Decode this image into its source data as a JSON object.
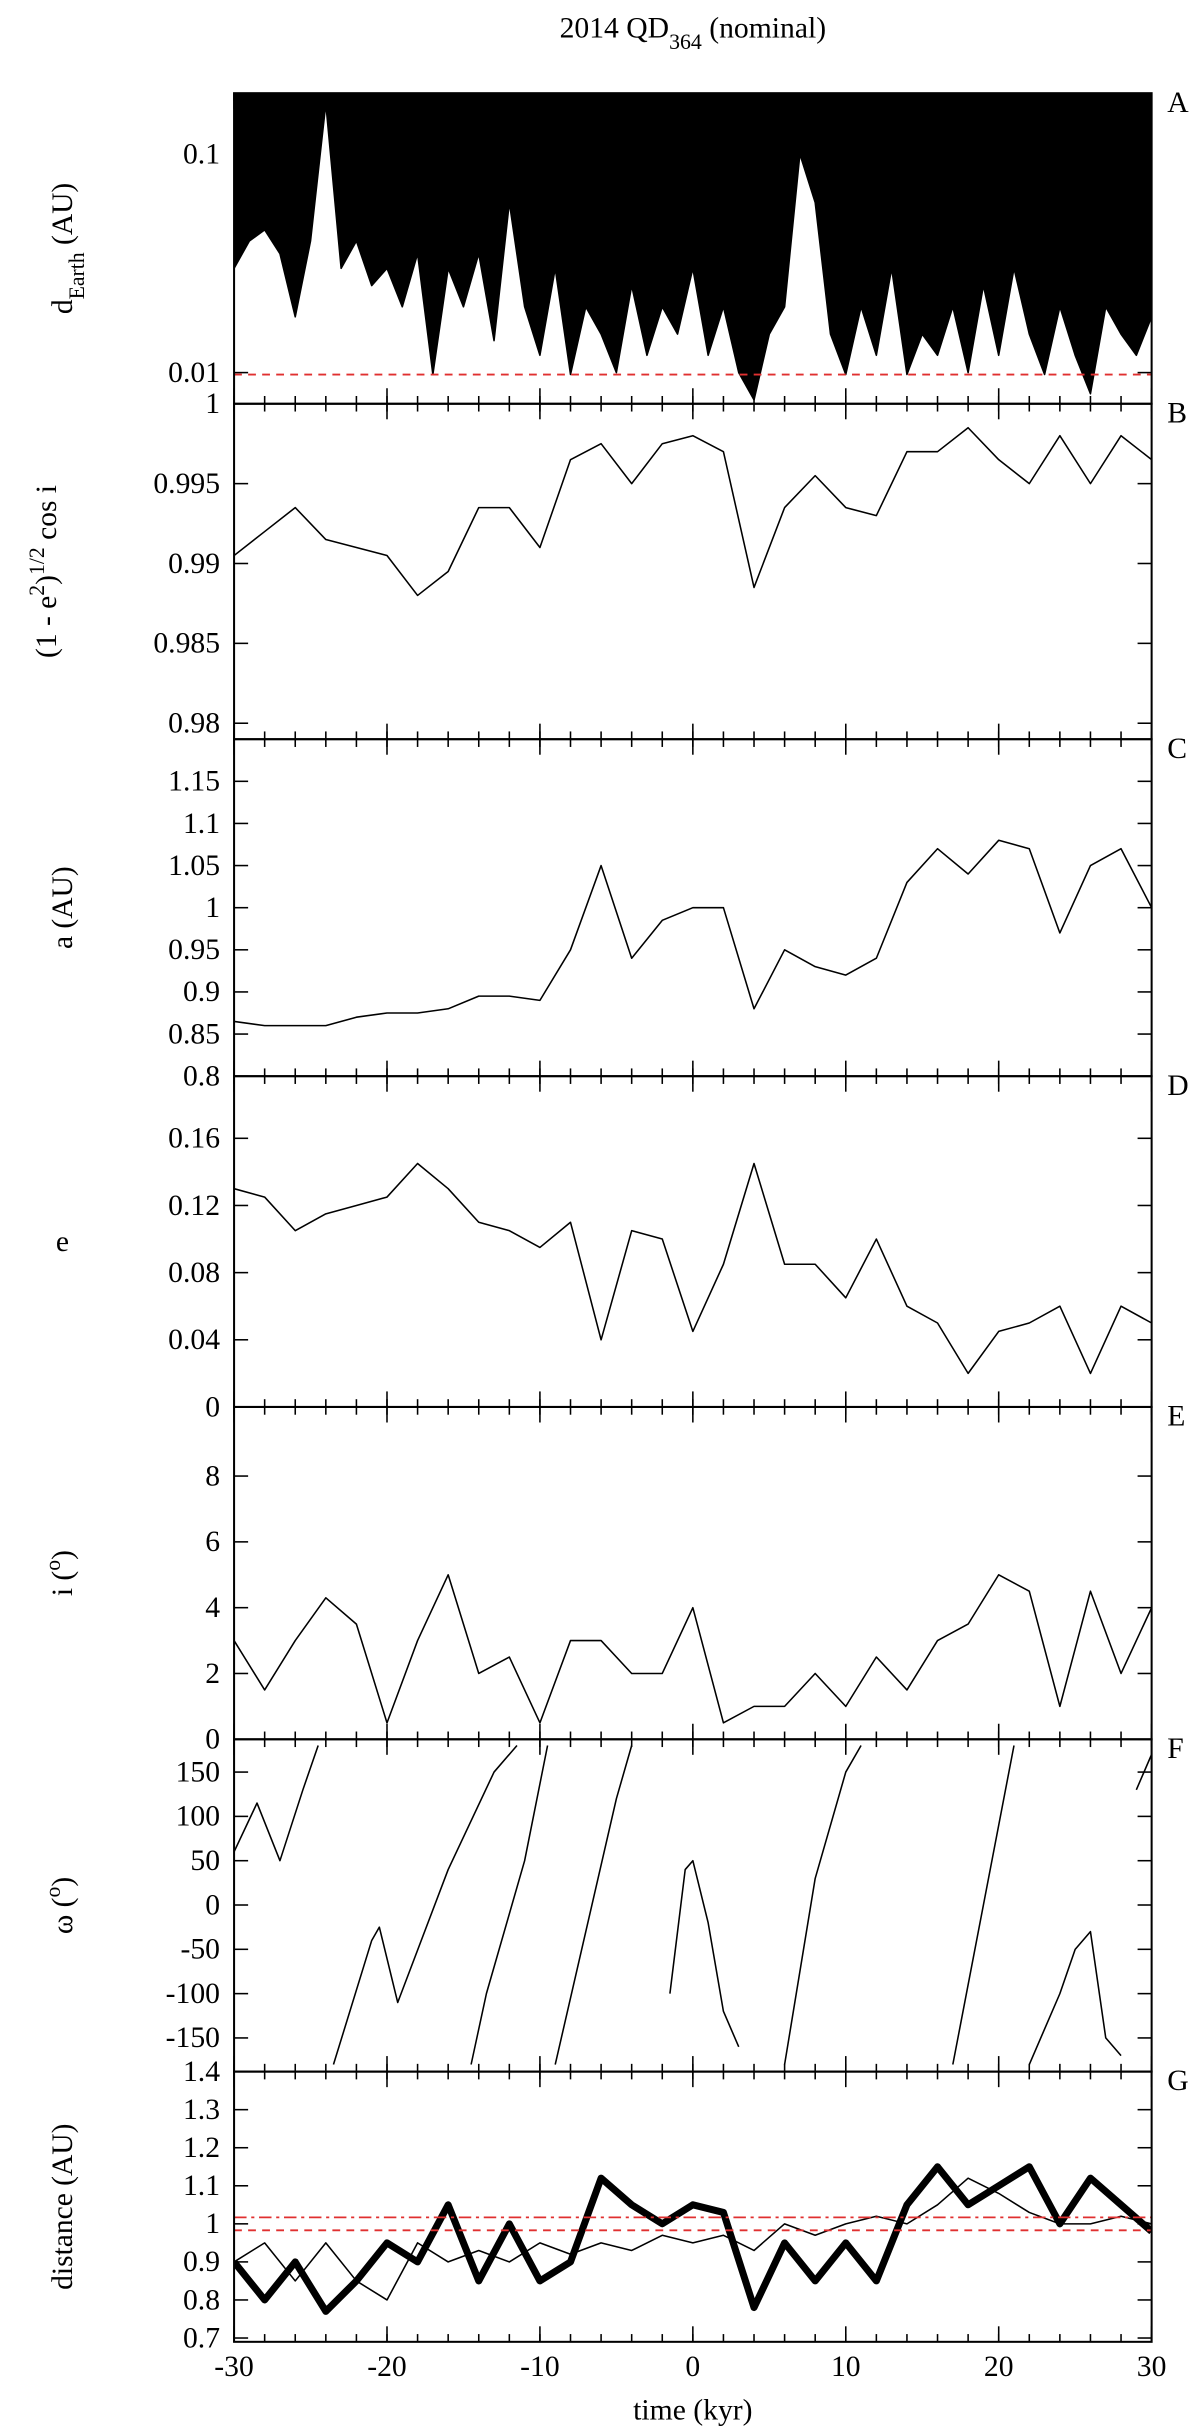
{
  "chart_data": [
    {
      "type": "line",
      "log": true,
      "fill_above": true,
      "panel_label": "A",
      "title": [
        {
          "text": "2014 QD"
        },
        {
          "text": "364",
          "shift": "sub"
        },
        {
          "text": " (nominal)"
        }
      ],
      "ylabel": [
        {
          "text": "d"
        },
        {
          "text": "Earth",
          "shift": "sub"
        },
        {
          "text": " (AU)"
        }
      ],
      "ylim": [
        0.0072,
        0.19
      ],
      "yticks": [
        0.01,
        0.1
      ],
      "hlines": [
        {
          "value": 0.0098,
          "color": "#e03030",
          "dash": "dashed"
        }
      ],
      "x": [
        -30,
        -29,
        -28,
        -27,
        -26,
        -25,
        -24,
        -23,
        -22,
        -21,
        -20,
        -19,
        -18,
        -17,
        -16,
        -15,
        -14,
        -13,
        -12,
        -11,
        -10,
        -9,
        -8,
        -7,
        -6,
        -5,
        -4,
        -3,
        -2,
        -1,
        0,
        1,
        2,
        3,
        4,
        5,
        6,
        7,
        8,
        9,
        10,
        11,
        12,
        13,
        14,
        15,
        16,
        17,
        18,
        19,
        20,
        21,
        22,
        23,
        24,
        25,
        26,
        27,
        28,
        29,
        30
      ],
      "series": [
        {
          "color": "#000000",
          "values": [
            0.03,
            0.04,
            0.045,
            0.035,
            0.018,
            0.04,
            0.17,
            0.03,
            0.04,
            0.025,
            0.03,
            0.02,
            0.035,
            0.0098,
            0.03,
            0.02,
            0.035,
            0.014,
            0.06,
            0.02,
            0.012,
            0.03,
            0.0098,
            0.02,
            0.015,
            0.01,
            0.025,
            0.012,
            0.02,
            0.015,
            0.03,
            0.012,
            0.02,
            0.01,
            0.0075,
            0.015,
            0.02,
            0.1,
            0.06,
            0.015,
            0.0098,
            0.02,
            0.012,
            0.03,
            0.0098,
            0.015,
            0.012,
            0.02,
            0.01,
            0.025,
            0.012,
            0.03,
            0.015,
            0.0098,
            0.02,
            0.012,
            0.008,
            0.02,
            0.015,
            0.012,
            0.018
          ]
        }
      ]
    },
    {
      "type": "line",
      "panel_label": "B",
      "ylabel": [
        {
          "text": "(1 - e"
        },
        {
          "text": "2",
          "shift": "super"
        },
        {
          "text": ")"
        },
        {
          "text": "1/2",
          "shift": "super"
        },
        {
          "text": " cos i"
        }
      ],
      "ylim": [
        0.979,
        1
      ],
      "yticks": [
        0.98,
        0.985,
        0.99,
        0.995,
        1
      ],
      "x": [
        -30,
        -28,
        -26,
        -24,
        -22,
        -20,
        -18,
        -16,
        -14,
        -12,
        -10,
        -8,
        -6,
        -4,
        -2,
        0,
        2,
        4,
        6,
        8,
        10,
        12,
        14,
        16,
        18,
        20,
        22,
        24,
        26,
        28,
        30
      ],
      "series": [
        {
          "color": "#000000",
          "values": [
            0.9905,
            0.992,
            0.9935,
            0.9915,
            0.991,
            0.9905,
            0.988,
            0.9895,
            0.9935,
            0.9935,
            0.991,
            0.9965,
            0.9975,
            0.995,
            0.9975,
            0.998,
            0.997,
            0.9885,
            0.9935,
            0.9955,
            0.9935,
            0.993,
            0.997,
            0.997,
            0.9985,
            0.9965,
            0.995,
            0.998,
            0.995,
            0.998,
            0.9965
          ]
        }
      ]
    },
    {
      "type": "line",
      "panel_label": "C",
      "ylabel": [
        {
          "text": "a (AU)"
        }
      ],
      "ylim": [
        0.8,
        1.2
      ],
      "yticks": [
        0.8,
        0.85,
        0.9,
        0.95,
        1,
        1.05,
        1.1,
        1.15
      ],
      "x": [
        -30,
        -28,
        -26,
        -24,
        -22,
        -20,
        -18,
        -16,
        -14,
        -12,
        -10,
        -8,
        -6,
        -4,
        -2,
        0,
        2,
        4,
        6,
        8,
        10,
        12,
        14,
        16,
        18,
        20,
        22,
        24,
        26,
        28,
        30
      ],
      "series": [
        {
          "color": "#000000",
          "values": [
            0.865,
            0.86,
            0.86,
            0.86,
            0.87,
            0.875,
            0.875,
            0.88,
            0.895,
            0.895,
            0.89,
            0.95,
            1.05,
            0.94,
            0.985,
            1.0,
            1.0,
            0.88,
            0.95,
            0.93,
            0.92,
            0.94,
            1.03,
            1.07,
            1.04,
            1.08,
            1.07,
            0.97,
            1.05,
            1.07,
            1.0
          ]
        }
      ]
    },
    {
      "type": "line",
      "panel_label": "D",
      "ylabel_horizontal": true,
      "ylabel": [
        {
          "text": "e"
        }
      ],
      "ylim": [
        0,
        0.197
      ],
      "yticks": [
        0,
        0.04,
        0.08,
        0.12,
        0.16
      ],
      "x": [
        -30,
        -28,
        -26,
        -24,
        -22,
        -20,
        -18,
        -16,
        -14,
        -12,
        -10,
        -8,
        -6,
        -4,
        -2,
        0,
        2,
        4,
        6,
        8,
        10,
        12,
        14,
        16,
        18,
        20,
        22,
        24,
        26,
        28,
        30
      ],
      "series": [
        {
          "color": "#000000",
          "values": [
            0.13,
            0.125,
            0.105,
            0.115,
            0.12,
            0.125,
            0.145,
            0.13,
            0.11,
            0.105,
            0.095,
            0.11,
            0.04,
            0.105,
            0.1,
            0.045,
            0.085,
            0.145,
            0.085,
            0.085,
            0.065,
            0.1,
            0.06,
            0.05,
            0.02,
            0.045,
            0.05,
            0.06,
            0.02,
            0.06,
            0.05
          ]
        }
      ]
    },
    {
      "type": "line",
      "panel_label": "E",
      "ylabel": [
        {
          "text": "i ("
        },
        {
          "text": "o",
          "shift": "super"
        },
        {
          "text": ")"
        }
      ],
      "ylim": [
        0,
        10.1
      ],
      "yticks": [
        0,
        2,
        4,
        6,
        8
      ],
      "x": [
        -30,
        -28,
        -26,
        -24,
        -22,
        -20,
        -18,
        -16,
        -14,
        -12,
        -10,
        -8,
        -6,
        -4,
        -2,
        0,
        2,
        4,
        6,
        8,
        10,
        12,
        14,
        16,
        18,
        20,
        22,
        24,
        26,
        28,
        30
      ],
      "series": [
        {
          "color": "#000000",
          "values": [
            3,
            1.5,
            3,
            4.3,
            3.5,
            0.5,
            3,
            5,
            2,
            2.5,
            0.5,
            3,
            3,
            2,
            2,
            4,
            0.5,
            1,
            1,
            2,
            1,
            2.5,
            1.5,
            3,
            3.5,
            5,
            4.5,
            1,
            4.5,
            2,
            4
          ]
        }
      ]
    },
    {
      "type": "line",
      "panel_label": "F",
      "ylabel": [
        {
          "text": "ω ("
        },
        {
          "text": "o",
          "shift": "super"
        },
        {
          "text": ")"
        }
      ],
      "ylim": [
        -188,
        187
      ],
      "yticks": [
        -150,
        -100,
        -50,
        0,
        50,
        100,
        150
      ],
      "x": [
        -30,
        -28.5,
        -27,
        -25.5,
        -24.5,
        -24,
        -23.5,
        -21,
        -20.5,
        -19.3,
        -16,
        -13,
        -11.5,
        -11,
        -14.5,
        -13.5,
        -11,
        -9.5,
        -9,
        -9,
        -7,
        -5,
        -4,
        -3.5,
        -1.5,
        -0.5,
        0,
        1,
        2,
        3,
        3.5,
        6,
        8,
        10,
        11,
        11.5,
        17,
        19,
        21,
        21.5,
        22,
        24,
        25,
        26,
        27,
        28,
        28.3,
        29,
        30
      ],
      "series": [
        {
          "color": "#000000",
          "values": [
            60,
            115,
            50,
            130,
            180,
            null,
            -180,
            -40,
            -25,
            -110,
            40,
            150,
            180,
            null,
            -180,
            -100,
            50,
            180,
            null,
            -180,
            -30,
            120,
            180,
            null,
            -100,
            40,
            50,
            -20,
            -120,
            -160,
            null,
            -180,
            30,
            150,
            180,
            null,
            -180,
            0,
            180,
            null,
            -180,
            -100,
            -50,
            -30,
            -150,
            -170,
            null,
            130,
            170
          ]
        }
      ]
    },
    {
      "type": "line",
      "panel_label": "G",
      "ylabel": [
        {
          "text": "distance (AU)"
        }
      ],
      "ylim": [
        0.69,
        1.4
      ],
      "yticks": [
        0.7,
        0.8,
        0.9,
        1,
        1.1,
        1.2,
        1.3,
        1.4
      ],
      "xlim": [
        -30,
        30
      ],
      "xticks": [
        -30,
        -20,
        -10,
        0,
        10,
        20,
        30
      ],
      "x_minor_step": 2,
      "xlabel": "time (kyr)",
      "hlines": [
        {
          "value": 1.017,
          "color": "#e03030",
          "dash": "dashdot"
        },
        {
          "value": 0.983,
          "color": "#e03030",
          "dash": "dashed"
        }
      ],
      "x": [
        -30,
        -28,
        -26,
        -24,
        -22,
        -20,
        -18,
        -16,
        -14,
        -12,
        -10,
        -8,
        -6,
        -4,
        -2,
        0,
        2,
        4,
        6,
        8,
        10,
        12,
        14,
        16,
        18,
        20,
        22,
        24,
        26,
        28,
        30
      ],
      "series": [
        {
          "color": "#000000",
          "width": 4.5,
          "values": [
            0.9,
            0.8,
            0.9,
            0.77,
            0.85,
            0.95,
            0.9,
            1.05,
            0.85,
            1.0,
            0.85,
            0.9,
            1.12,
            1.05,
            1.0,
            1.05,
            1.03,
            0.78,
            0.95,
            0.85,
            0.95,
            0.85,
            1.05,
            1.15,
            1.05,
            1.1,
            1.15,
            1.0,
            1.12,
            1.05,
            0.98
          ]
        },
        {
          "color": "#000000",
          "width": 1,
          "values": [
            0.9,
            0.95,
            0.85,
            0.95,
            0.85,
            0.8,
            0.95,
            0.9,
            0.93,
            0.9,
            0.95,
            0.92,
            0.95,
            0.93,
            0.97,
            0.95,
            0.97,
            0.93,
            1.0,
            0.97,
            1.0,
            1.02,
            1.0,
            1.05,
            1.12,
            1.08,
            1.03,
            1.0,
            1.0,
            1.02,
            1.0
          ]
        }
      ]
    }
  ]
}
